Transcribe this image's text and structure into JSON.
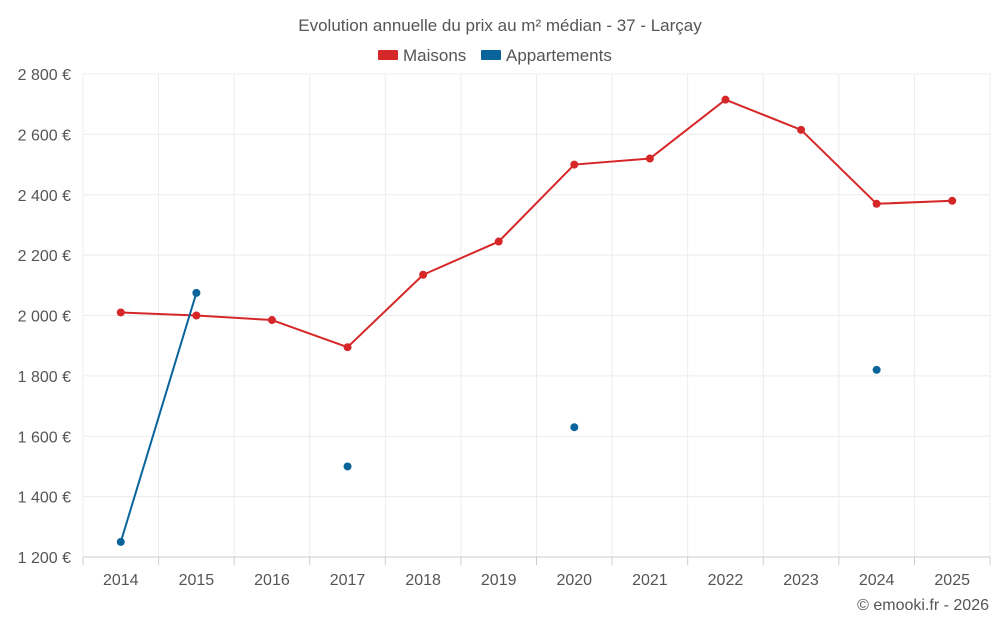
{
  "chart_data": {
    "type": "line",
    "title": "Evolution annuelle du prix au m² médian - 37 - Larçay",
    "categories": [
      "2014",
      "2015",
      "2016",
      "2017",
      "2018",
      "2019",
      "2020",
      "2021",
      "2022",
      "2023",
      "2024",
      "2025"
    ],
    "ylim": [
      1200,
      2800
    ],
    "yticks": [
      1200,
      1400,
      1600,
      1800,
      2000,
      2200,
      2400,
      2600,
      2800
    ],
    "ytick_labels": [
      "1 200 €",
      "1 400 €",
      "1 600 €",
      "1 800 €",
      "2 000 €",
      "2 200 €",
      "2 400 €",
      "2 600 €",
      "2 800 €"
    ],
    "grid": true,
    "legend_position": "top-center",
    "series": [
      {
        "name": "Maisons",
        "color": "#d62728",
        "values": [
          2010,
          2000,
          1985,
          1895,
          2135,
          2245,
          2500,
          2520,
          2715,
          2615,
          2370,
          2380
        ]
      },
      {
        "name": "Appartements",
        "color": "#08649b",
        "values": [
          1250,
          2075,
          null,
          1500,
          null,
          null,
          1630,
          null,
          null,
          null,
          1820,
          null
        ]
      }
    ],
    "credit": "© emooki.fr - 2026"
  }
}
